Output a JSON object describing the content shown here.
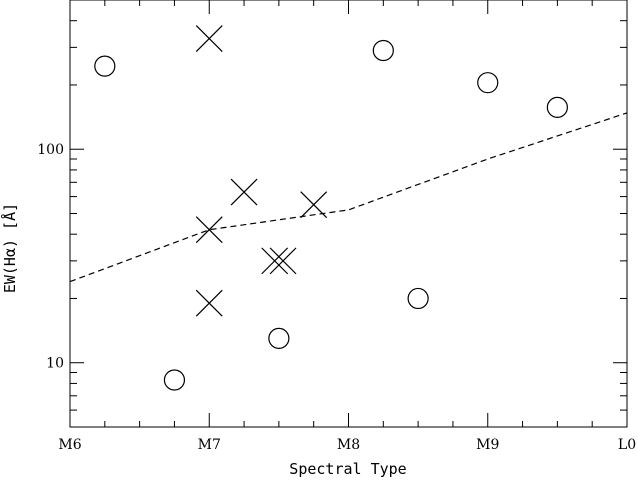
{
  "chart_data": {
    "type": "scatter",
    "xlabel": "Spectral Type",
    "ylabel": "EW(Hα) [Å]",
    "y_scale": "log",
    "xlim": [
      6,
      10
    ],
    "ylim": [
      5,
      500
    ],
    "x_ticks": [
      {
        "value": 6,
        "label": "M6"
      },
      {
        "value": 7,
        "label": "M7"
      },
      {
        "value": 8,
        "label": "M8"
      },
      {
        "value": 9,
        "label": "M9"
      },
      {
        "value": 10,
        "label": "L0"
      }
    ],
    "y_tick_labels": [
      {
        "value": 10,
        "label": "10"
      },
      {
        "value": 100,
        "label": "100"
      }
    ],
    "grid": false,
    "series": [
      {
        "marker": "circle",
        "points": [
          {
            "x": 6.25,
            "y": 245
          },
          {
            "x": 6.75,
            "y": 8.3
          },
          {
            "x": 7.5,
            "y": 13
          },
          {
            "x": 8.25,
            "y": 290
          },
          {
            "x": 8.5,
            "y": 20
          },
          {
            "x": 9.0,
            "y": 205
          },
          {
            "x": 9.5,
            "y": 157
          }
        ]
      },
      {
        "marker": "cross",
        "points": [
          {
            "x": 7.0,
            "y": 330
          },
          {
            "x": 7.25,
            "y": 63
          },
          {
            "x": 7.0,
            "y": 42
          },
          {
            "x": 7.75,
            "y": 55
          },
          {
            "x": 7.47,
            "y": 30
          },
          {
            "x": 7.53,
            "y": 30
          },
          {
            "x": 7.0,
            "y": 19
          }
        ]
      },
      {
        "marker": "dashed-line",
        "points": [
          {
            "x": 6.0,
            "y": 24
          },
          {
            "x": 7.0,
            "y": 42
          },
          {
            "x": 8.0,
            "y": 52
          },
          {
            "x": 9.0,
            "y": 90
          },
          {
            "x": 10.0,
            "y": 148
          }
        ]
      }
    ]
  }
}
